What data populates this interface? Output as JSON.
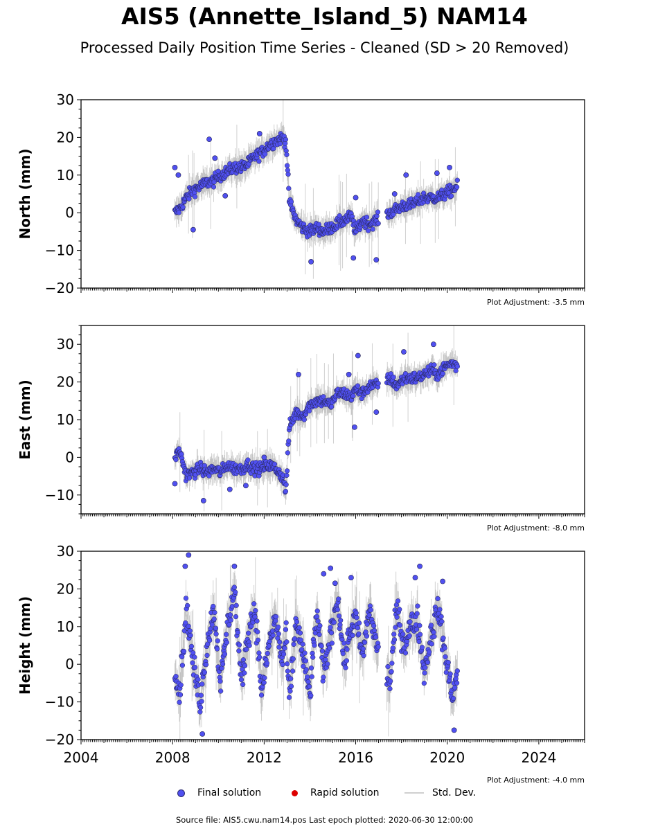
{
  "title": "AIS5 (Annette_Island_5) NAM14",
  "subtitle": "Processed Daily Position Time Series - Cleaned (SD > 20 Removed)",
  "legend": {
    "final": "Final solution",
    "rapid": "Rapid solution",
    "std": "Std. Dev.",
    "colors": {
      "final": "#5050f0",
      "rapid": "#dd0000",
      "std": "#cfcfcf"
    }
  },
  "footer": "Source file: AIS5.cwu.nam14.pos  Last epoch plotted: 2020-06-30 12:00:00",
  "chart_data": [
    {
      "type": "scatter",
      "ylabel": "North (mm)",
      "ylim": [
        -20,
        30
      ],
      "yticks": [
        -20,
        -10,
        0,
        10,
        20,
        30
      ],
      "xlim": [
        2004,
        2026
      ],
      "adjustment": "Plot Adjustment: -3.5 mm",
      "series": [
        {
          "name": "Final solution",
          "x": [
            2008.1,
            2008.3,
            2008.6,
            2008.9,
            2009.2,
            2009.5,
            2009.8,
            2010.1,
            2010.4,
            2010.7,
            2011.0,
            2011.3,
            2011.6,
            2011.9,
            2012.2,
            2012.5,
            2012.8,
            2012.95,
            2013.1,
            2013.4,
            2013.7,
            2014.0,
            2014.3,
            2014.6,
            2014.9,
            2015.2,
            2015.5,
            2015.8,
            2016.0,
            2016.3,
            2016.6,
            2016.9,
            2017.5,
            2017.8,
            2018.1,
            2018.4,
            2018.7,
            2019.0,
            2019.3,
            2019.6,
            2019.9,
            2020.2,
            2020.45
          ],
          "y": [
            0,
            1,
            4,
            6,
            7,
            8,
            8.5,
            10,
            11,
            12,
            12,
            13,
            15,
            16,
            18,
            19,
            20,
            19,
            3,
            -2,
            -4,
            -5,
            -4,
            -5,
            -4,
            -3,
            -2,
            -1,
            -5,
            -2,
            -3,
            -2,
            0,
            1,
            2,
            2,
            3,
            4,
            4,
            4,
            5,
            6,
            7
          ]
        }
      ],
      "outliers": {
        "x": [
          2008.1,
          2008.25,
          2008.9,
          2009.6,
          2009.85,
          2010.3,
          2011.8,
          2014.05,
          2015.9,
          2016.0,
          2016.9,
          2017.7,
          2018.2,
          2019.55,
          2020.1
        ],
        "y": [
          12,
          10,
          -4.5,
          19.5,
          14.5,
          4.5,
          21,
          -13,
          -12,
          4,
          -12.5,
          5,
          10,
          10.5,
          12
        ]
      }
    },
    {
      "type": "scatter",
      "ylabel": "East (mm)",
      "ylim": [
        -15,
        35
      ],
      "yticks": [
        -10,
        0,
        10,
        20,
        30
      ],
      "xlim": [
        2004,
        2026
      ],
      "adjustment": "Plot Adjustment: -8.0 mm",
      "series": [
        {
          "name": "Final solution",
          "x": [
            2008.1,
            2008.3,
            2008.6,
            2008.9,
            2009.2,
            2009.5,
            2009.8,
            2010.1,
            2010.4,
            2010.7,
            2011.0,
            2011.3,
            2011.6,
            2011.9,
            2012.2,
            2012.5,
            2012.8,
            2012.95,
            2013.1,
            2013.4,
            2013.7,
            2014.0,
            2014.3,
            2014.6,
            2014.9,
            2015.2,
            2015.5,
            2015.8,
            2016.0,
            2016.3,
            2016.6,
            2016.9,
            2017.5,
            2017.8,
            2018.1,
            2018.4,
            2018.7,
            2019.0,
            2019.3,
            2019.6,
            2019.9,
            2020.2,
            2020.45
          ],
          "y": [
            0,
            2,
            -5,
            -4,
            -3,
            -4,
            -3,
            -4,
            -2,
            -3,
            -3,
            -2,
            -3,
            -3,
            -2,
            -3,
            -5,
            -9,
            8,
            12,
            11,
            14,
            15,
            15,
            14,
            17,
            17,
            16,
            18,
            17,
            19,
            19,
            21,
            19,
            21,
            21,
            21,
            22,
            23,
            22,
            24,
            25,
            24
          ]
        }
      ],
      "outliers": {
        "x": [
          2008.1,
          2009.35,
          2010.5,
          2011.2,
          2012.0,
          2013.5,
          2015.7,
          2015.95,
          2016.1,
          2016.9,
          2018.1,
          2019.4
        ],
        "y": [
          -7,
          -11.5,
          -8.5,
          -7.5,
          0,
          22,
          22,
          8,
          27,
          12,
          28,
          30
        ]
      }
    },
    {
      "type": "scatter",
      "ylabel": "Height (mm)",
      "ylim": [
        -20,
        30
      ],
      "yticks": [
        -20,
        -10,
        0,
        10,
        20,
        30
      ],
      "xlim": [
        2004,
        2026
      ],
      "xticks": [
        2004,
        2008,
        2012,
        2016,
        2020,
        2024
      ],
      "adjustment": "Plot Adjustment: -4.0 mm",
      "series": [
        {
          "name": "Final solution",
          "x": [
            2008.1,
            2008.3,
            2008.6,
            2008.9,
            2009.2,
            2009.5,
            2009.8,
            2010.1,
            2010.4,
            2010.7,
            2011.0,
            2011.3,
            2011.6,
            2011.9,
            2012.2,
            2012.5,
            2012.8,
            2012.95,
            2013.1,
            2013.4,
            2013.7,
            2014.0,
            2014.3,
            2014.6,
            2014.9,
            2015.2,
            2015.5,
            2015.8,
            2016.0,
            2016.3,
            2016.6,
            2016.9,
            2017.5,
            2017.8,
            2018.1,
            2018.4,
            2018.7,
            2019.0,
            2019.3,
            2019.6,
            2019.9,
            2020.2,
            2020.45
          ],
          "y": [
            0,
            -8,
            15,
            0,
            -10,
            5,
            15,
            -5,
            10,
            20,
            -5,
            8,
            15,
            -8,
            5,
            12,
            0,
            8,
            -10,
            12,
            2,
            -8,
            14,
            -3,
            8,
            18,
            0,
            10,
            12,
            2,
            15,
            5,
            -5,
            15,
            5,
            10,
            12,
            -2,
            8,
            15,
            3,
            -8,
            -3
          ]
        }
      ],
      "outliers": {
        "x": [
          2008.55,
          2008.7,
          2009.3,
          2010.7,
          2014.6,
          2014.9,
          2015.1,
          2015.8,
          2018.6,
          2018.8,
          2019.8,
          2020.3
        ],
        "y": [
          26,
          29,
          -18.5,
          26,
          24,
          25.5,
          21.5,
          23,
          23,
          26,
          22,
          -17.5
        ]
      }
    }
  ]
}
